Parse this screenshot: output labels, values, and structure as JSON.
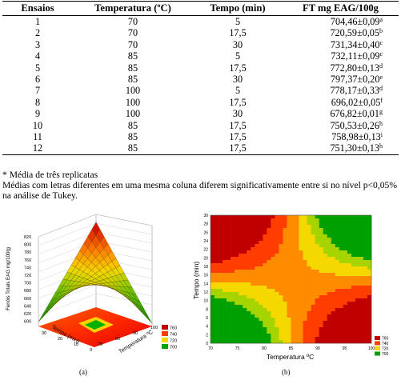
{
  "table": {
    "headers": [
      "Ensaios",
      "Temperatura (ºC)",
      "Tempo (min)",
      "FT mg EAG/100g"
    ],
    "rows": [
      {
        "ensaio": "1",
        "temperatura": "70",
        "tempo": "5",
        "ft": "704,46±0,09",
        "sup": "a"
      },
      {
        "ensaio": "2",
        "temperatura": "70",
        "tempo": "17,5",
        "ft": "720,59±0,05",
        "sup": "b"
      },
      {
        "ensaio": "3",
        "temperatura": "70",
        "tempo": "30",
        "ft": "731,34±0,40",
        "sup": "c"
      },
      {
        "ensaio": "4",
        "temperatura": "85",
        "tempo": "5",
        "ft": "732,11±0,09",
        "sup": "c"
      },
      {
        "ensaio": "5",
        "temperatura": "85",
        "tempo": "17,5",
        "ft": "772,80±0,13",
        "sup": "d"
      },
      {
        "ensaio": "6",
        "temperatura": "85",
        "tempo": "30",
        "ft": "797,37±0,20",
        "sup": "e"
      },
      {
        "ensaio": "7",
        "temperatura": "100",
        "tempo": "5",
        "ft": "778,17±0,33",
        "sup": "d"
      },
      {
        "ensaio": "8",
        "temperatura": "100",
        "tempo": "17,5",
        "ft": "696,02±0,05",
        "sup": "f"
      },
      {
        "ensaio": "9",
        "temperatura": "100",
        "tempo": "30",
        "ft": "676,82±0,01",
        "sup": "g"
      },
      {
        "ensaio": "10",
        "temperatura": "85",
        "tempo": "17,5",
        "ft": "750,53±0,26",
        "sup": "h"
      },
      {
        "ensaio": "11",
        "temperatura": "85",
        "tempo": "17,5",
        "ft": "758,98±0,13",
        "sup": "i"
      },
      {
        "ensaio": "12",
        "temperatura": "85",
        "tempo": "17,5",
        "ft": "751,30±0,13",
        "sup": "h"
      }
    ]
  },
  "notes": {
    "footnote": "* Média de três replicatas",
    "line1": "Médias com letras diferentes em uma mesma coluna diferem significativamente entre si no nível p<0,05%",
    "line2": "na análise de Tukey."
  },
  "panel_a": {
    "label": "(a)",
    "zlabel": "Fenóis Totais EAG mg/100(g",
    "xlabel": "Temperatura ºC",
    "ylabel": "Tempo (min)",
    "z_ticks": [
      "820",
      "800",
      "780",
      "760",
      "740",
      "720",
      "700",
      "680",
      "660",
      "640",
      "620",
      "600"
    ],
    "x_ticks": [
      "70",
      "80",
      "90",
      "100"
    ],
    "y_ticks": [
      "30",
      "20",
      "10",
      "0"
    ],
    "legend": [
      {
        "label": "760",
        "color": "#c00000"
      },
      {
        "label": "740",
        "color": "#ff3d00"
      },
      {
        "label": "720",
        "color": "#f5d800"
      },
      {
        "label": "700",
        "color": "#00a000"
      }
    ]
  },
  "panel_b": {
    "label": "(b)",
    "xlabel": "Temperatura ºC",
    "ylabel": "Tempo (min)",
    "x_ticks": [
      "70",
      "75",
      "80",
      "85",
      "90",
      "95",
      "100"
    ],
    "y_ticks": [
      "30",
      "28",
      "26",
      "24",
      "22",
      "20",
      "18",
      "16",
      "14",
      "12",
      "10",
      "8",
      "6",
      "4",
      "2",
      "0"
    ],
    "legend": [
      {
        "label": "760",
        "color": "#c00000"
      },
      {
        "label": "740",
        "color": "#ff3d00"
      },
      {
        "label": "720",
        "color": "#f5d800"
      },
      {
        "label": "700",
        "color": "#00a000"
      }
    ]
  }
}
